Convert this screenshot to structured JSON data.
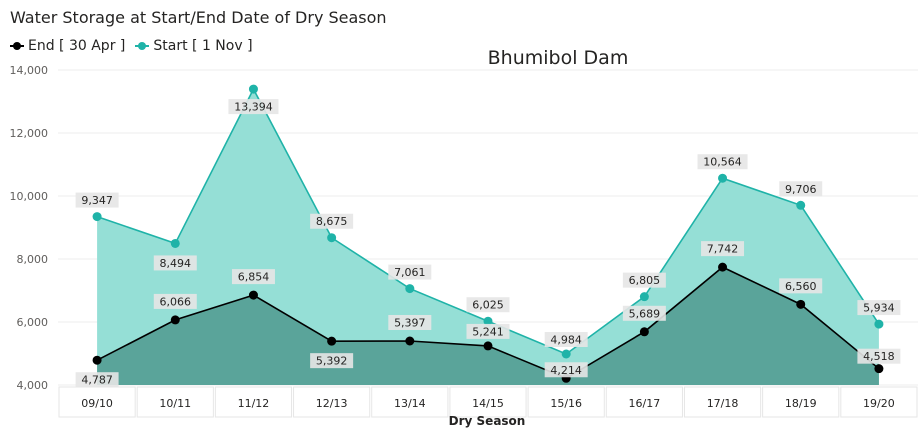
{
  "chart_data": {
    "type": "area",
    "title": "Water Storage at Start/End Date of Dry Season",
    "subtitle": "Bhumibol Dam",
    "xlabel": "Dry  Season",
    "ylabel": "",
    "categories": [
      "09/10",
      "10/11",
      "11/12",
      "12/13",
      "13/14",
      "14/15",
      "15/16",
      "16/17",
      "17/18",
      "18/19",
      "19/20"
    ],
    "ylim": [
      4000,
      14000
    ],
    "yticks": [
      "4,000",
      "6,000",
      "8,000",
      "10,000",
      "12,000",
      "14,000"
    ],
    "ytick_values": [
      4000,
      6000,
      8000,
      10000,
      12000,
      14000
    ],
    "grid": true,
    "legend_position": "top-left",
    "series": [
      {
        "name": "End [ 30 Apr ]",
        "color": "#000000",
        "fill": "#5aa49a",
        "values": [
          4787,
          6066,
          6854,
          5392,
          5397,
          5241,
          4214,
          5689,
          7742,
          6560,
          4518
        ],
        "labels": [
          "4,787",
          "6,066",
          "6,854",
          "5,392",
          "5,397",
          "5,241",
          "4,214",
          "5,689",
          "7,742",
          "6,560",
          "4,518"
        ]
      },
      {
        "name": "Start [ 1 Nov ]",
        "color": "#1fb3a8",
        "fill": "#95dfd6",
        "values": [
          9347,
          8494,
          13394,
          8675,
          7061,
          6025,
          4984,
          6805,
          10564,
          9706,
          5934
        ],
        "labels": [
          "9,347",
          "8,494",
          "13,394",
          "8,675",
          "7,061",
          "6,025",
          "4,984",
          "6,805",
          "10,564",
          "9,706",
          "5,934"
        ]
      }
    ]
  }
}
